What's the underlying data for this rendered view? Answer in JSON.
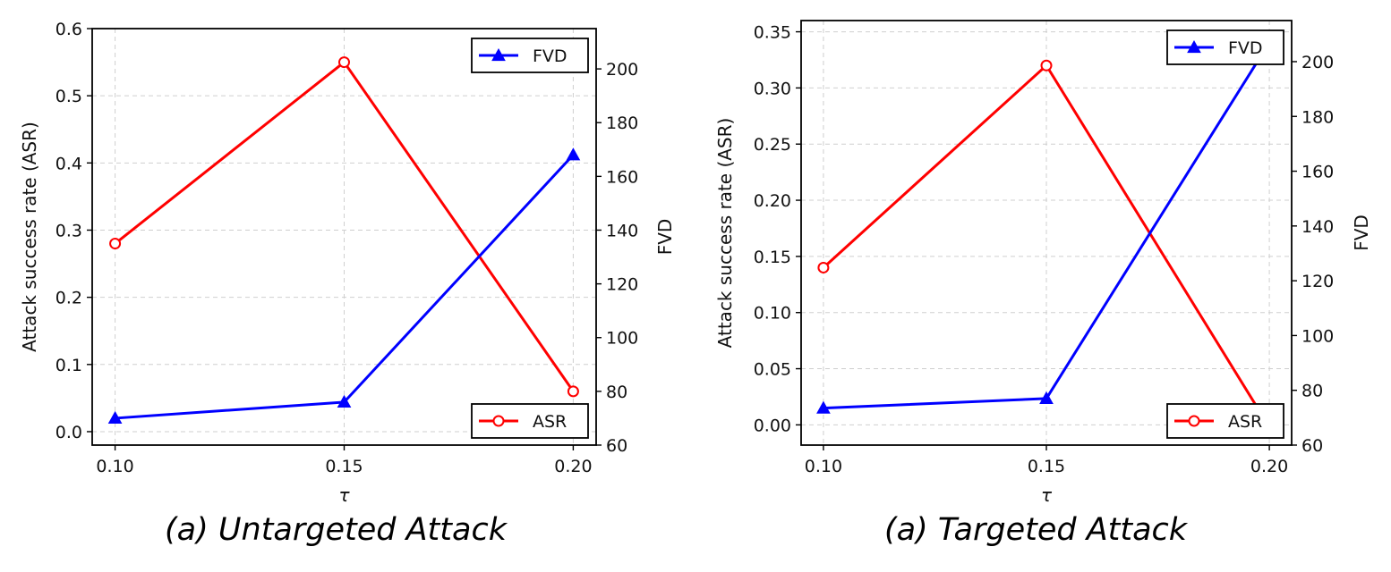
{
  "chart_data": [
    {
      "type": "line",
      "caption": "(a) Untargeted Attack",
      "x": [
        0.1,
        0.15,
        0.2
      ],
      "x_tick_labels": [
        "0.10",
        "0.15",
        "0.20"
      ],
      "xlabel": "τ",
      "xlim": [
        0.095,
        0.205
      ],
      "ylabel": "Attack success rate (ASR)",
      "ylim": [
        -0.02,
        0.6
      ],
      "yticks": [
        0.0,
        0.1,
        0.2,
        0.3,
        0.4,
        0.5,
        0.6
      ],
      "y_tick_labels": [
        "0.0",
        "0.1",
        "0.2",
        "0.3",
        "0.4",
        "0.5",
        "0.6"
      ],
      "y2label": "FVD",
      "y2lim": [
        60,
        215
      ],
      "y2ticks": [
        60,
        80,
        100,
        120,
        140,
        160,
        180,
        200
      ],
      "y2_tick_labels": [
        "60",
        "80",
        "100",
        "120",
        "140",
        "160",
        "180",
        "200"
      ],
      "grid": true,
      "series": [
        {
          "name": "ASR",
          "axis": "left",
          "color": "#ff0000",
          "marker": "circle-open",
          "values": [
            0.28,
            0.55,
            0.06
          ],
          "legend": "lower-right"
        },
        {
          "name": "FVD",
          "axis": "right",
          "color": "#0000ff",
          "marker": "triangle",
          "values": [
            70,
            76,
            168
          ],
          "legend": "upper-right"
        }
      ]
    },
    {
      "type": "line",
      "caption": "(a) Targeted Attack",
      "x": [
        0.1,
        0.15,
        0.2
      ],
      "x_tick_labels": [
        "0.10",
        "0.15",
        "0.20"
      ],
      "xlabel": "τ",
      "xlim": [
        0.095,
        0.205
      ],
      "ylabel": "Attack success rate (ASR)",
      "ylim": [
        -0.018,
        0.36
      ],
      "yticks": [
        0.0,
        0.05,
        0.1,
        0.15,
        0.2,
        0.25,
        0.3,
        0.35
      ],
      "y_tick_labels": [
        "0.00",
        "0.05",
        "0.10",
        "0.15",
        "0.20",
        "0.25",
        "0.30",
        "0.35"
      ],
      "y2label": "FVD",
      "y2lim": [
        60,
        215
      ],
      "y2ticks": [
        60,
        80,
        100,
        120,
        140,
        160,
        180,
        200
      ],
      "y2_tick_labels": [
        "60",
        "80",
        "100",
        "120",
        "140",
        "160",
        "180",
        "200"
      ],
      "grid": true,
      "series": [
        {
          "name": "ASR",
          "axis": "left",
          "color": "#ff0000",
          "marker": "circle-open",
          "values": [
            0.14,
            0.32,
            -0.002
          ],
          "legend": "lower-right"
        },
        {
          "name": "FVD",
          "axis": "right",
          "color": "#0000ff",
          "marker": "triangle",
          "values": [
            73.5,
            77,
            207
          ],
          "legend": "upper-right"
        }
      ]
    }
  ]
}
